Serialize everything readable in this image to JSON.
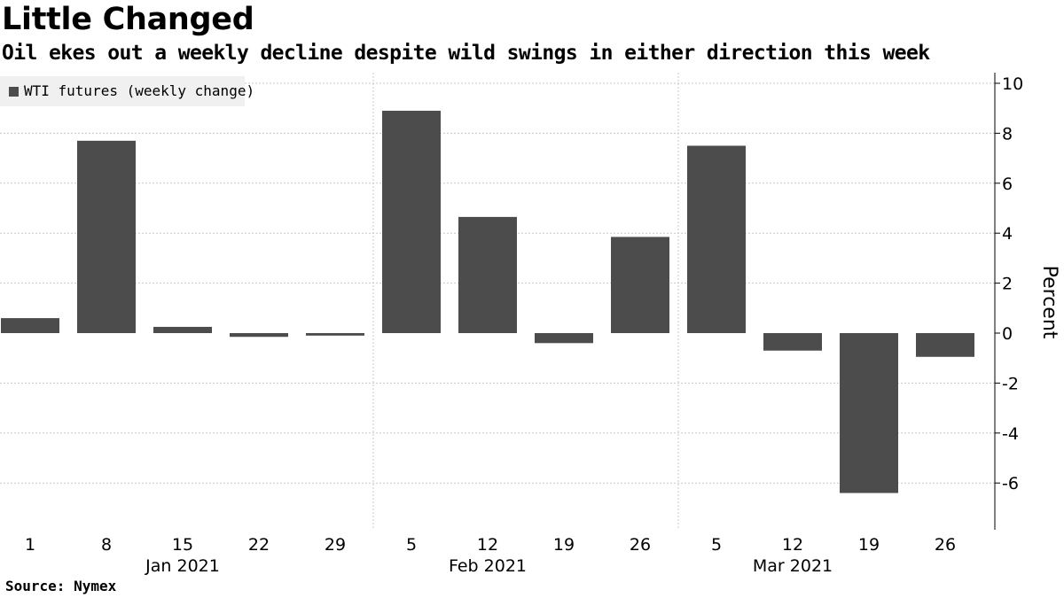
{
  "header": {
    "title": "Little Changed",
    "subtitle": "Oil ekes out a weekly decline despite wild swings in either direction this week"
  },
  "footer": {
    "source": "Source: Nymex"
  },
  "chart_data": {
    "type": "bar",
    "title": "Little Changed",
    "subtitle": "Oil ekes out a weekly decline despite wild swings in either direction this week",
    "xlabel": "",
    "ylabel": "Percent",
    "ylim": [
      -8,
      10
    ],
    "yticks": [
      10,
      8,
      6,
      4,
      2,
      0,
      -2,
      -4,
      -6
    ],
    "grid": true,
    "legend_position": "top-left",
    "bar_color": "#4c4c4c",
    "categories": [
      "1",
      "8",
      "15",
      "22",
      "29",
      "5",
      "12",
      "19",
      "26",
      "5",
      "12",
      "19",
      "26"
    ],
    "month_labels": [
      {
        "label": "Jan 2021",
        "center_index": 2
      },
      {
        "label": "Feb 2021",
        "center_index": 6
      },
      {
        "label": "Mar 2021",
        "center_index": 10
      }
    ],
    "series": [
      {
        "name": "WTI futures (weekly change)",
        "values": [
          0.6,
          7.7,
          0.25,
          -0.15,
          -0.1,
          8.9,
          4.65,
          -0.4,
          3.85,
          7.5,
          -0.7,
          -6.4,
          -0.95
        ]
      }
    ]
  }
}
